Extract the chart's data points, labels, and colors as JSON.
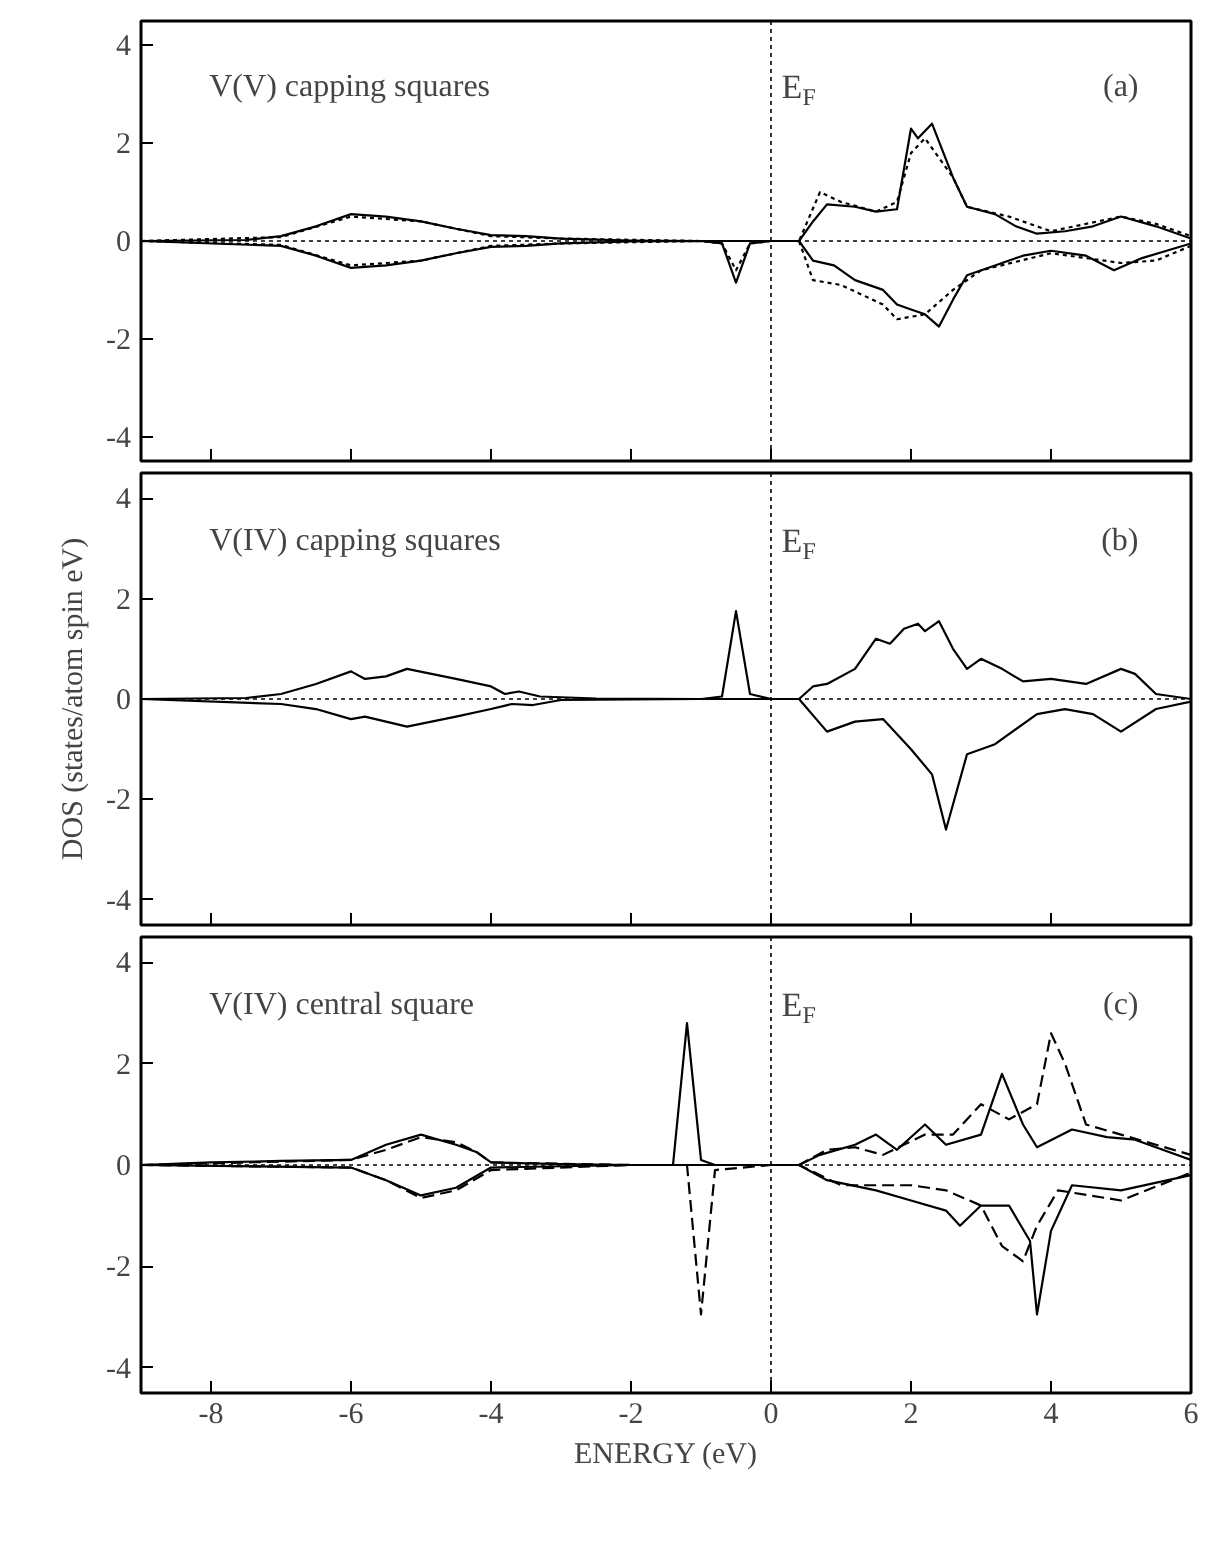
{
  "chart_data": [
    {
      "type": "line",
      "tick_labels": "y",
      "xlim": [
        -9,
        6
      ],
      "ylim": [
        -4.5,
        4.5
      ],
      "xticks": [
        -8,
        -6,
        -4,
        -2,
        0,
        2,
        4,
        6
      ],
      "yticks": [
        -4,
        -2,
        0,
        2,
        4
      ],
      "grid": false,
      "annotations": [
        "V(V) capping squares",
        "(a)"
      ],
      "ref_lines": [
        {
          "axis": "x",
          "value": 0,
          "label": "E$_{F}$",
          "line_style": "dotted"
        },
        {
          "axis": "y",
          "value": 0,
          "label": null,
          "line_style": "dotted"
        }
      ],
      "series": [
        {
          "color": "#000000",
          "line_style": "solid",
          "x": [
            -9,
            -7.5,
            -7,
            -6.5,
            -6,
            -5.5,
            -5,
            -4.5,
            -4,
            -3.5,
            -3,
            -2,
            -1,
            0,
            0.4,
            0.6,
            0.8,
            1.2,
            1.5,
            1.8,
            2.0,
            2.1,
            2.3,
            2.6,
            2.8,
            3.2,
            3.5,
            3.8,
            4.2,
            4.6,
            5.0,
            5.5,
            6
          ],
          "values": [
            0,
            0.02,
            0.1,
            0.3,
            0.55,
            0.5,
            0.4,
            0.25,
            0.12,
            0.1,
            0.05,
            0.01,
            0,
            0,
            0,
            0.4,
            0.75,
            0.7,
            0.6,
            0.65,
            2.3,
            2.1,
            2.4,
            1.3,
            0.7,
            0.55,
            0.3,
            0.15,
            0.2,
            0.3,
            0.5,
            0.3,
            0.05
          ]
        },
        {
          "color": "#000000",
          "line_style": "solid",
          "x": [
            -9,
            -7,
            -6.5,
            -6,
            -5.5,
            -5,
            -4.5,
            -4,
            -3.5,
            -3,
            -2,
            -1,
            -0.7,
            -0.5,
            -0.3,
            0,
            0.4,
            0.6,
            0.9,
            1.2,
            1.6,
            1.8,
            2.0,
            2.2,
            2.4,
            2.6,
            2.8,
            3.2,
            3.6,
            4,
            4.5,
            4.9,
            5.3,
            6
          ],
          "values": [
            0,
            -0.1,
            -0.3,
            -0.55,
            -0.5,
            -0.4,
            -0.25,
            -0.12,
            -0.1,
            -0.05,
            -0.01,
            0,
            -0.05,
            -0.85,
            -0.05,
            0,
            0,
            -0.4,
            -0.5,
            -0.8,
            -1.0,
            -1.3,
            -1.4,
            -1.5,
            -1.75,
            -1.2,
            -0.7,
            -0.5,
            -0.3,
            -0.2,
            -0.3,
            -0.6,
            -0.35,
            -0.05
          ]
        },
        {
          "color": "#000000",
          "line_style": "dotted",
          "x": [
            -9,
            -7,
            -6,
            -5,
            -4,
            -3,
            -1,
            0,
            0.4,
            0.7,
            1,
            1.5,
            1.8,
            2.0,
            2.2,
            2.6,
            2.8,
            3.4,
            4,
            5,
            5.5,
            6
          ],
          "values": [
            0,
            0.08,
            0.5,
            0.4,
            0.1,
            0.05,
            0,
            0,
            0,
            1.0,
            0.8,
            0.6,
            0.8,
            1.8,
            2.1,
            1.3,
            0.7,
            0.5,
            0.2,
            0.5,
            0.35,
            0.1
          ]
        },
        {
          "color": "#000000",
          "line_style": "dotted",
          "x": [
            -9,
            -7,
            -6,
            -5,
            -4,
            -3,
            -1,
            -0.7,
            -0.5,
            -0.3,
            0,
            0.4,
            0.6,
            1,
            1.6,
            1.8,
            2.2,
            2.6,
            3,
            4,
            5,
            5.5,
            6
          ],
          "values": [
            0,
            -0.08,
            -0.5,
            -0.4,
            -0.1,
            -0.05,
            0,
            -0.05,
            -0.6,
            -0.05,
            0,
            0,
            -0.8,
            -0.9,
            -1.3,
            -1.6,
            -1.5,
            -1.0,
            -0.6,
            -0.25,
            -0.45,
            -0.4,
            -0.1
          ]
        }
      ]
    },
    {
      "type": "line",
      "tick_labels": "y",
      "ylabel": "DOS (states/atom spin eV)",
      "xlim": [
        -9,
        6
      ],
      "ylim": [
        -4.5,
        4.5
      ],
      "xticks": [
        -8,
        -6,
        -4,
        -2,
        0,
        2,
        4,
        6
      ],
      "yticks": [
        -4,
        -2,
        0,
        2,
        4
      ],
      "grid": false,
      "annotations": [
        "V(IV) capping squares",
        "(b)"
      ],
      "ref_lines": [
        {
          "axis": "x",
          "value": 0,
          "label": "E$_{F}$",
          "line_style": "dotted"
        },
        {
          "axis": "y",
          "value": 0,
          "label": null,
          "line_style": "dotted"
        }
      ],
      "series": [
        {
          "color": "#000000",
          "line_style": "solid",
          "x": [
            -9,
            -7.5,
            -7,
            -6.5,
            -6,
            -5.8,
            -5.5,
            -5.2,
            -4.5,
            -4,
            -3.8,
            -3.6,
            -3.3,
            -2.5,
            -1,
            -0.7,
            -0.5,
            -0.3,
            0,
            0.4,
            0.6,
            0.8,
            1.2,
            1.5,
            1.7,
            1.9,
            2.1,
            2.2,
            2.4,
            2.6,
            2.8,
            3.0,
            3.3,
            3.6,
            4,
            4.5,
            5,
            5.2,
            5.5,
            6
          ],
          "values": [
            0,
            0.02,
            0.1,
            0.3,
            0.55,
            0.4,
            0.45,
            0.6,
            0.4,
            0.25,
            0.1,
            0.15,
            0.05,
            0.01,
            0,
            0.05,
            1.75,
            0.1,
            0,
            0,
            0.25,
            0.3,
            0.6,
            1.2,
            1.1,
            1.4,
            1.5,
            1.35,
            1.55,
            1.0,
            0.6,
            0.8,
            0.6,
            0.35,
            0.4,
            0.3,
            0.6,
            0.5,
            0.1,
            0
          ]
        },
        {
          "color": "#000000",
          "line_style": "solid",
          "x": [
            -9,
            -7,
            -6.5,
            -6,
            -5.8,
            -5.2,
            -4.5,
            -4,
            -3.7,
            -3.4,
            -3,
            -1,
            0,
            0.4,
            0.8,
            1.2,
            1.6,
            2.0,
            2.3,
            2.5,
            2.8,
            3.2,
            3.8,
            4.2,
            4.6,
            5,
            5.5,
            6
          ],
          "values": [
            0,
            -0.1,
            -0.2,
            -0.4,
            -0.35,
            -0.55,
            -0.35,
            -0.2,
            -0.1,
            -0.12,
            -0.02,
            0,
            0,
            0,
            -0.65,
            -0.45,
            -0.4,
            -1.0,
            -1.5,
            -2.6,
            -1.1,
            -0.9,
            -0.3,
            -0.2,
            -0.3,
            -0.65,
            -0.2,
            -0.05
          ]
        }
      ]
    },
    {
      "type": "line",
      "xlabel": "ENERGY (eV)",
      "xlim": [
        -9,
        6
      ],
      "ylim": [
        -4.5,
        4.5
      ],
      "xticks": [
        -8,
        -6,
        -4,
        -2,
        0,
        2,
        4,
        6
      ],
      "yticks": [
        -4,
        -2,
        0,
        2,
        4
      ],
      "grid": false,
      "annotations": [
        "V(IV) central square",
        "(c)"
      ],
      "ref_lines": [
        {
          "axis": "x",
          "value": 0,
          "label": "E$_{F}$",
          "line_style": "dotted"
        },
        {
          "axis": "y",
          "value": 0,
          "label": null,
          "line_style": "dotted"
        }
      ],
      "series": [
        {
          "color": "#000000",
          "line_style": "solid",
          "x": [
            -9,
            -8,
            -7,
            -6,
            -5.5,
            -5,
            -4.5,
            -4.2,
            -4,
            -3,
            -2,
            -1.4,
            -1.2,
            -1.0,
            -0.8,
            0,
            0.4,
            0.7,
            1.2,
            1.5,
            1.8,
            2.2,
            2.5,
            3.0,
            3.3,
            3.6,
            3.8,
            4.3,
            4.8,
            5.2,
            6
          ],
          "values": [
            0,
            0.05,
            0.08,
            0.1,
            0.4,
            0.6,
            0.4,
            0.25,
            0.05,
            0.02,
            0,
            0,
            2.8,
            0.1,
            0,
            0,
            0,
            0.2,
            0.4,
            0.6,
            0.3,
            0.8,
            0.4,
            0.6,
            1.8,
            0.8,
            0.35,
            0.7,
            0.55,
            0.5,
            0.1
          ]
        },
        {
          "color": "#000000",
          "line_style": "solid",
          "x": [
            -9,
            -6,
            -5.5,
            -5,
            -4.5,
            -4,
            -2,
            0,
            0.4,
            0.8,
            1.5,
            2.0,
            2.5,
            2.7,
            3.0,
            3.4,
            3.7,
            3.8,
            4.0,
            4.3,
            5,
            6
          ],
          "values": [
            0,
            -0.05,
            -0.3,
            -0.6,
            -0.45,
            -0.05,
            0,
            0,
            0,
            -0.3,
            -0.5,
            -0.7,
            -0.9,
            -1.2,
            -0.8,
            -0.8,
            -1.5,
            -2.95,
            -1.3,
            -0.4,
            -0.5,
            -0.2
          ]
        },
        {
          "color": "#000000",
          "line_style": "dashed",
          "x": [
            -9,
            -6,
            -5.5,
            -5,
            -4.5,
            -4.2,
            -4,
            -2,
            -1.2,
            0,
            0.4,
            0.8,
            1.2,
            1.6,
            2.2,
            2.6,
            3.0,
            3.4,
            3.8,
            4.0,
            4.2,
            4.5,
            5,
            6
          ],
          "values": [
            0,
            0.1,
            0.3,
            0.55,
            0.45,
            0.25,
            0.05,
            0,
            0,
            0,
            0,
            0.3,
            0.35,
            0.2,
            0.6,
            0.6,
            1.2,
            0.9,
            1.2,
            2.6,
            2.0,
            0.8,
            0.6,
            0.2
          ]
        },
        {
          "color": "#000000",
          "line_style": "dashed",
          "x": [
            -9,
            -6,
            -5.5,
            -5,
            -4.5,
            -4,
            -2,
            -1.2,
            -1.0,
            -0.8,
            0,
            0.4,
            1,
            2,
            2.5,
            3,
            3.3,
            3.6,
            3.8,
            4.1,
            5,
            6
          ],
          "values": [
            0,
            -0.05,
            -0.3,
            -0.65,
            -0.5,
            -0.1,
            0,
            0,
            -2.95,
            -0.1,
            0,
            0,
            -0.4,
            -0.4,
            -0.5,
            -0.8,
            -1.6,
            -1.9,
            -1.2,
            -0.5,
            -0.7,
            -0.15
          ]
        }
      ]
    }
  ]
}
